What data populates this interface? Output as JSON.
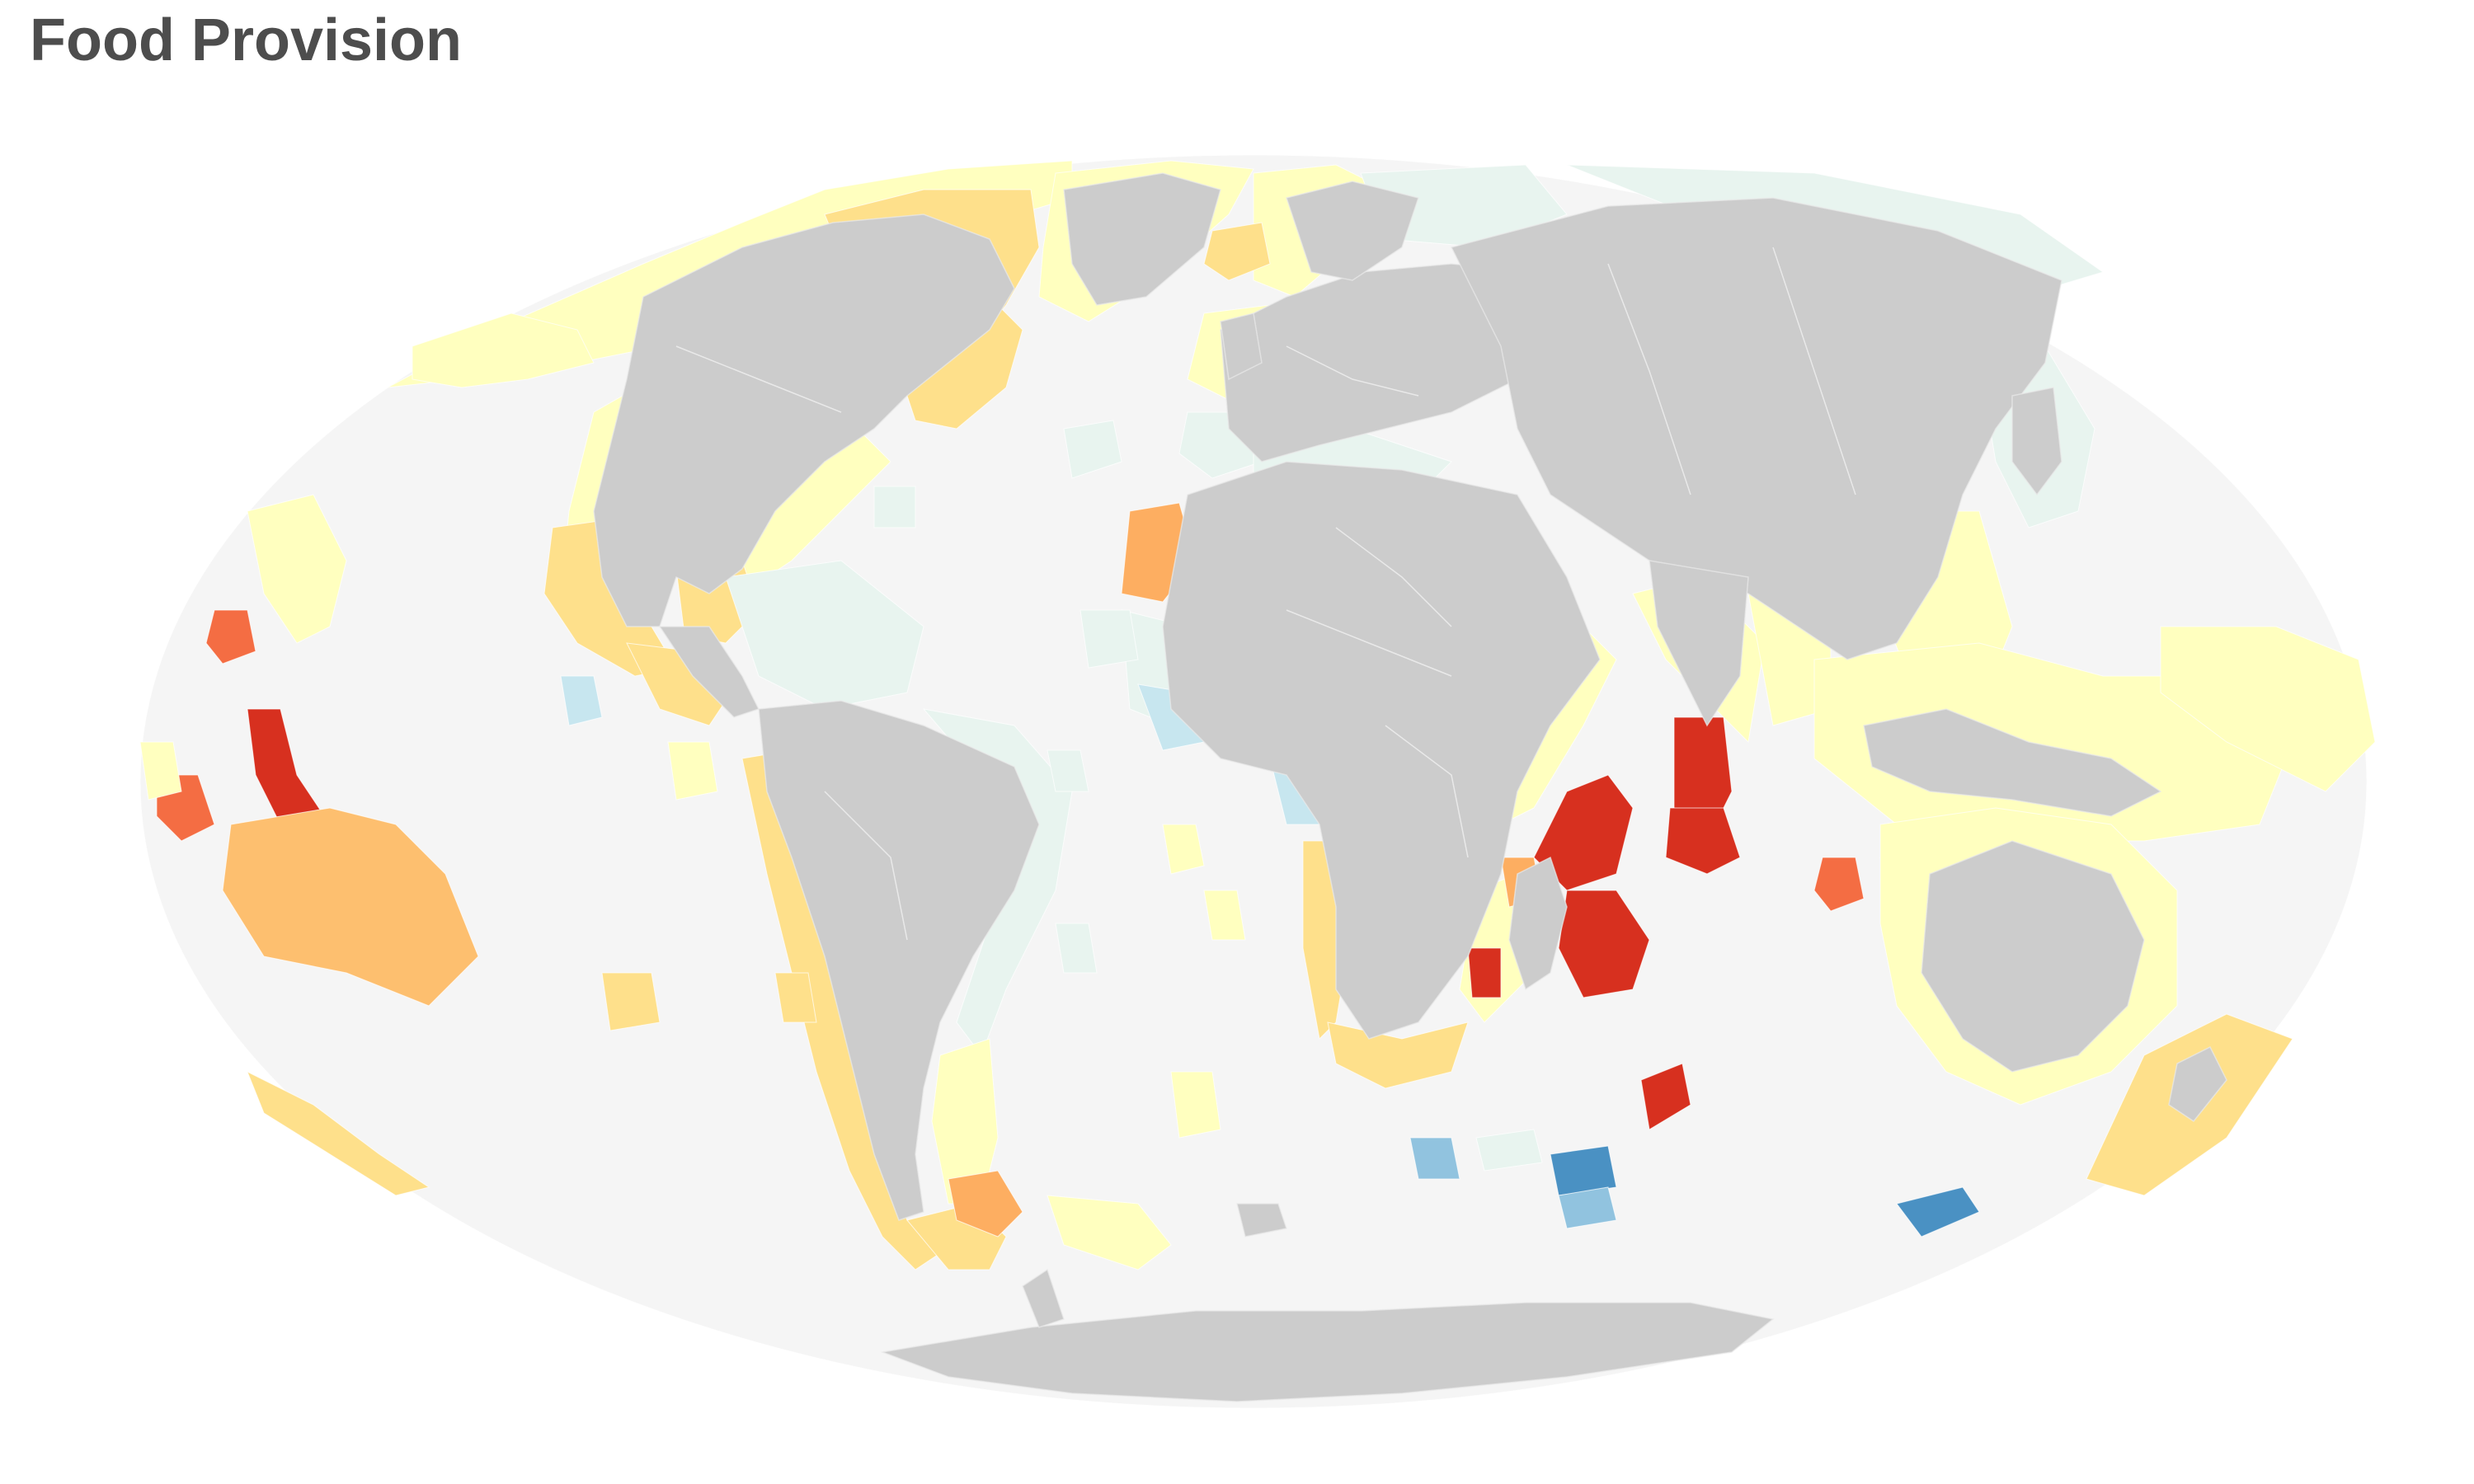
{
  "title": "Food Provision",
  "map": {
    "projection": "mollweide",
    "colors": {
      "ocean": "#f5f5f5",
      "land": "#cccccc",
      "border": "#e9e9e9",
      "very_low": "#4a91c3",
      "low": "#91c3df",
      "lower_mid": "#c7e6ef",
      "mid": "#e8f4ef",
      "upper_mid": "#ffffbf",
      "moderate": "#fee08b",
      "high": "#fdbf6f",
      "higher": "#fdae61",
      "very_high": "#f46d43",
      "highest": "#d7301f"
    }
  }
}
